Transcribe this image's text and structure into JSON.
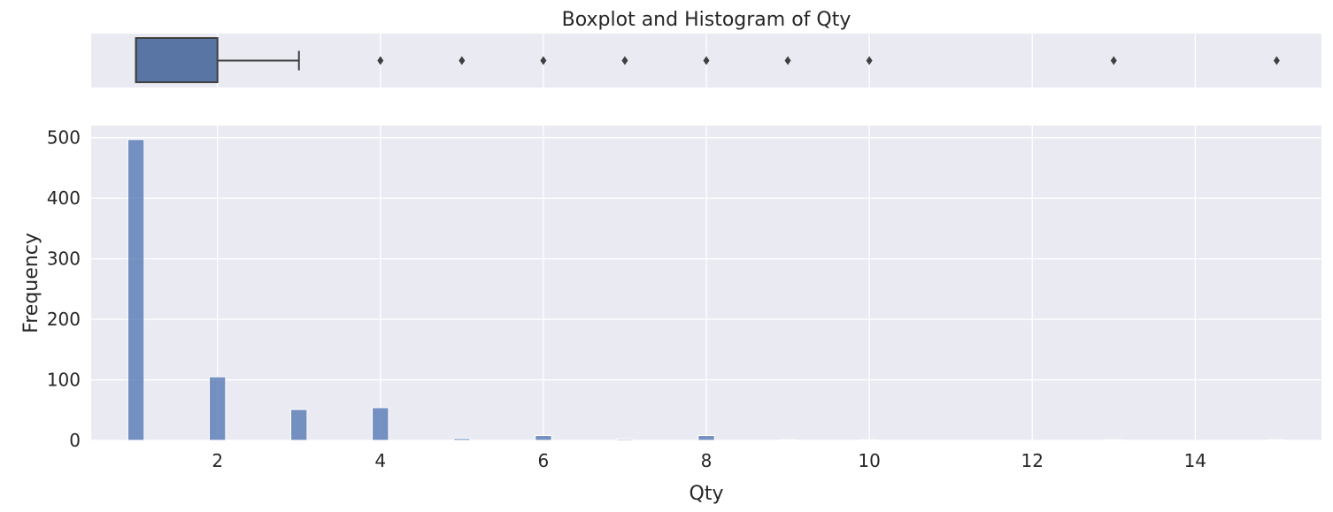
{
  "chart_data": [
    {
      "type": "boxplot",
      "title": "Boxplot and Histogram of Qty",
      "variable": "Qty",
      "xlim": [
        0.45,
        15.55
      ],
      "box": {
        "q1": 1,
        "median": 1,
        "q3": 2,
        "whisker_low": 1,
        "whisker_high": 3
      },
      "outliers": [
        4,
        5,
        6,
        7,
        8,
        9,
        10,
        13,
        15
      ],
      "grid": true
    },
    {
      "type": "bar",
      "xlabel": "Qty",
      "ylabel": "Frequency",
      "xlim": [
        0.45,
        15.55
      ],
      "ylim": [
        0,
        520
      ],
      "xticks": [
        2,
        4,
        6,
        8,
        10,
        12,
        14
      ],
      "yticks": [
        0,
        100,
        200,
        300,
        400,
        500
      ],
      "bin_width": 0.2,
      "bins": [
        {
          "x": 1,
          "count": 497
        },
        {
          "x": 2,
          "count": 105
        },
        {
          "x": 3,
          "count": 51
        },
        {
          "x": 4,
          "count": 54
        },
        {
          "x": 5,
          "count": 3
        },
        {
          "x": 6,
          "count": 8
        },
        {
          "x": 7,
          "count": 2
        },
        {
          "x": 8,
          "count": 8
        },
        {
          "x": 9,
          "count": 1
        },
        {
          "x": 10,
          "count": 1
        },
        {
          "x": 13,
          "count": 1
        },
        {
          "x": 15,
          "count": 1
        }
      ],
      "grid": true
    }
  ]
}
